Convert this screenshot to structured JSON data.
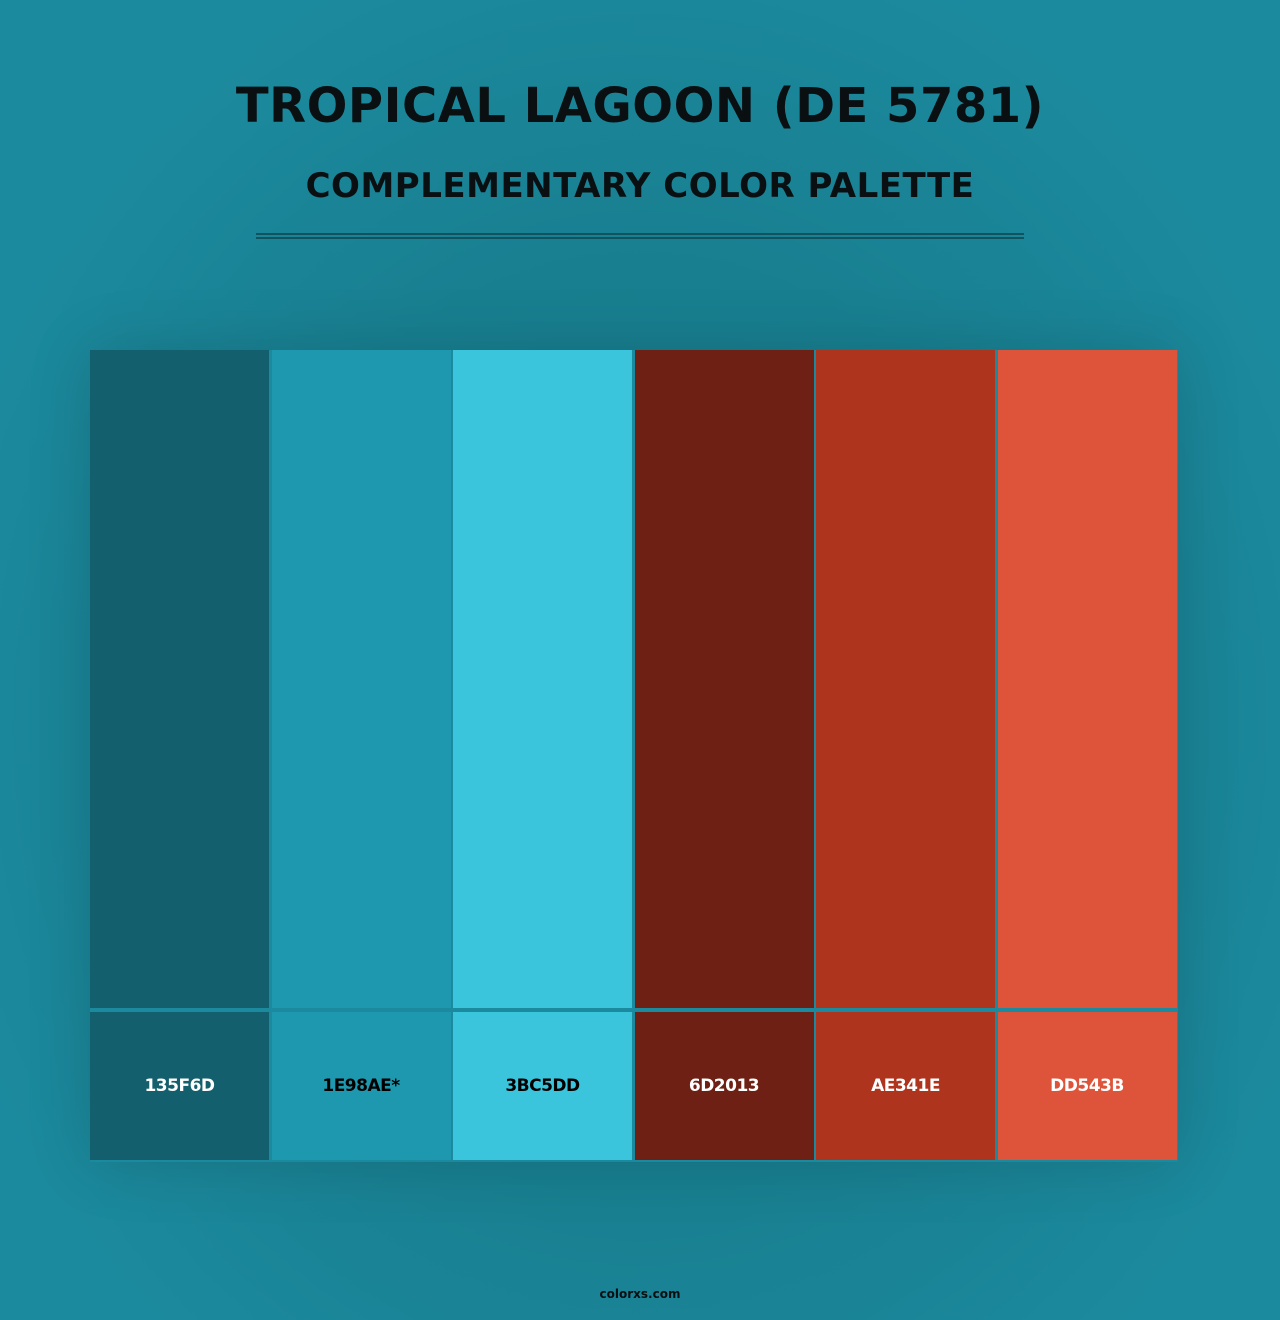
{
  "header": {
    "title": "TROPICAL LAGOON (DE 5781)",
    "subtitle": "COMPLEMENTARY COLOR PALETTE"
  },
  "colors": [
    {
      "hex": "#135F6D",
      "label": "135F6D",
      "text_color": "#ffffff"
    },
    {
      "hex": "#1E98AE",
      "label": "1E98AE*",
      "text_color": "#000000"
    },
    {
      "hex": "#3BC5DD",
      "label": "3BC5DD",
      "text_color": "#000000"
    },
    {
      "hex": "#6D2013",
      "label": "6D2013",
      "text_color": "#ffffff"
    },
    {
      "hex": "#AE341E",
      "label": "AE341E",
      "text_color": "#ffffff"
    },
    {
      "hex": "#DD543B",
      "label": "DD543B",
      "text_color": "#ffffff"
    }
  ],
  "footer": {
    "site": "colorxs.com"
  }
}
